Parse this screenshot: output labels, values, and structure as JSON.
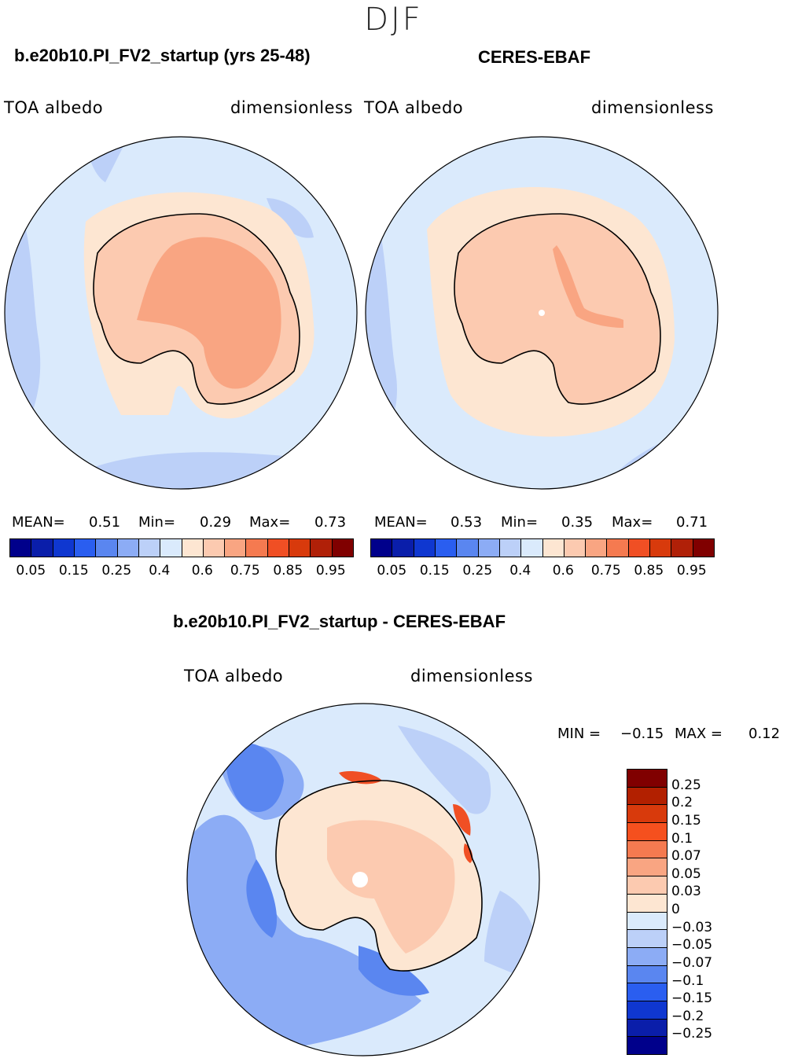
{
  "season": "DJF",
  "panels": [
    {
      "title": "b.e20b10.PI_FV2_startup (yrs 25-48)",
      "left_label": "TOA albedo",
      "right_label": "dimensionless",
      "mean_label": "MEAN=",
      "mean": "0.51",
      "min_label": "Min=",
      "min": "0.29",
      "max_label": "Max=",
      "max": "0.73"
    },
    {
      "title": "CERES-EBAF",
      "left_label": "TOA albedo",
      "right_label": "dimensionless",
      "mean_label": "MEAN=",
      "mean": "0.53",
      "min_label": "Min=",
      "min": "0.35",
      "max_label": "Max=",
      "max": "0.71"
    }
  ],
  "colorbar": {
    "colors": [
      "#00008b",
      "#0a1eaa",
      "#0f37d0",
      "#2a5ef0",
      "#5a86f0",
      "#8cacf5",
      "#bcd0f8",
      "#daeafc",
      "#fde6d2",
      "#fccab0",
      "#f9a582",
      "#f57a50",
      "#f04f24",
      "#d83a0c",
      "#b02008",
      "#800000"
    ],
    "ticks": [
      "0.05",
      "0.15",
      "0.25",
      "0.4",
      "0.6",
      "0.75",
      "0.85",
      "0.95"
    ]
  },
  "diff_panel": {
    "title": "b.e20b10.PI_FV2_startup - CERES-EBAF",
    "left_label": "TOA albedo",
    "right_label": "dimensionless",
    "min_label": "MIN =",
    "min": "−0.15",
    "max_label": "MAX =",
    "max": "0.12",
    "colorbar": {
      "colors_top_to_bottom": [
        "#800000",
        "#b22000",
        "#d83a0c",
        "#f5501e",
        "#f57a50",
        "#f9a582",
        "#fccab0",
        "#fde6d2",
        "#daeafc",
        "#bcd0f8",
        "#8cacf5",
        "#5a86f0",
        "#2a5ef0",
        "#0f37d0",
        "#0a1eaa",
        "#00008b"
      ],
      "ticks": [
        "0.25",
        "0.2",
        "0.15",
        "0.1",
        "0.07",
        "0.05",
        "0.03",
        "0",
        "−0.03",
        "−0.05",
        "−0.07",
        "−0.1",
        "−0.15",
        "−0.2",
        "−0.25"
      ]
    }
  },
  "map_colors": {
    "ocean": "#daeafc",
    "ocean_mid": "#bcd0f8",
    "ocean_dark": "#8cacf5",
    "ice_edge": "#fde6d2",
    "land_low": "#fccab0",
    "land_high": "#f9a582",
    "diff_blue": "#5a86f0",
    "diff_deep": "#2a5ef0",
    "diff_red": "#f04f24"
  }
}
